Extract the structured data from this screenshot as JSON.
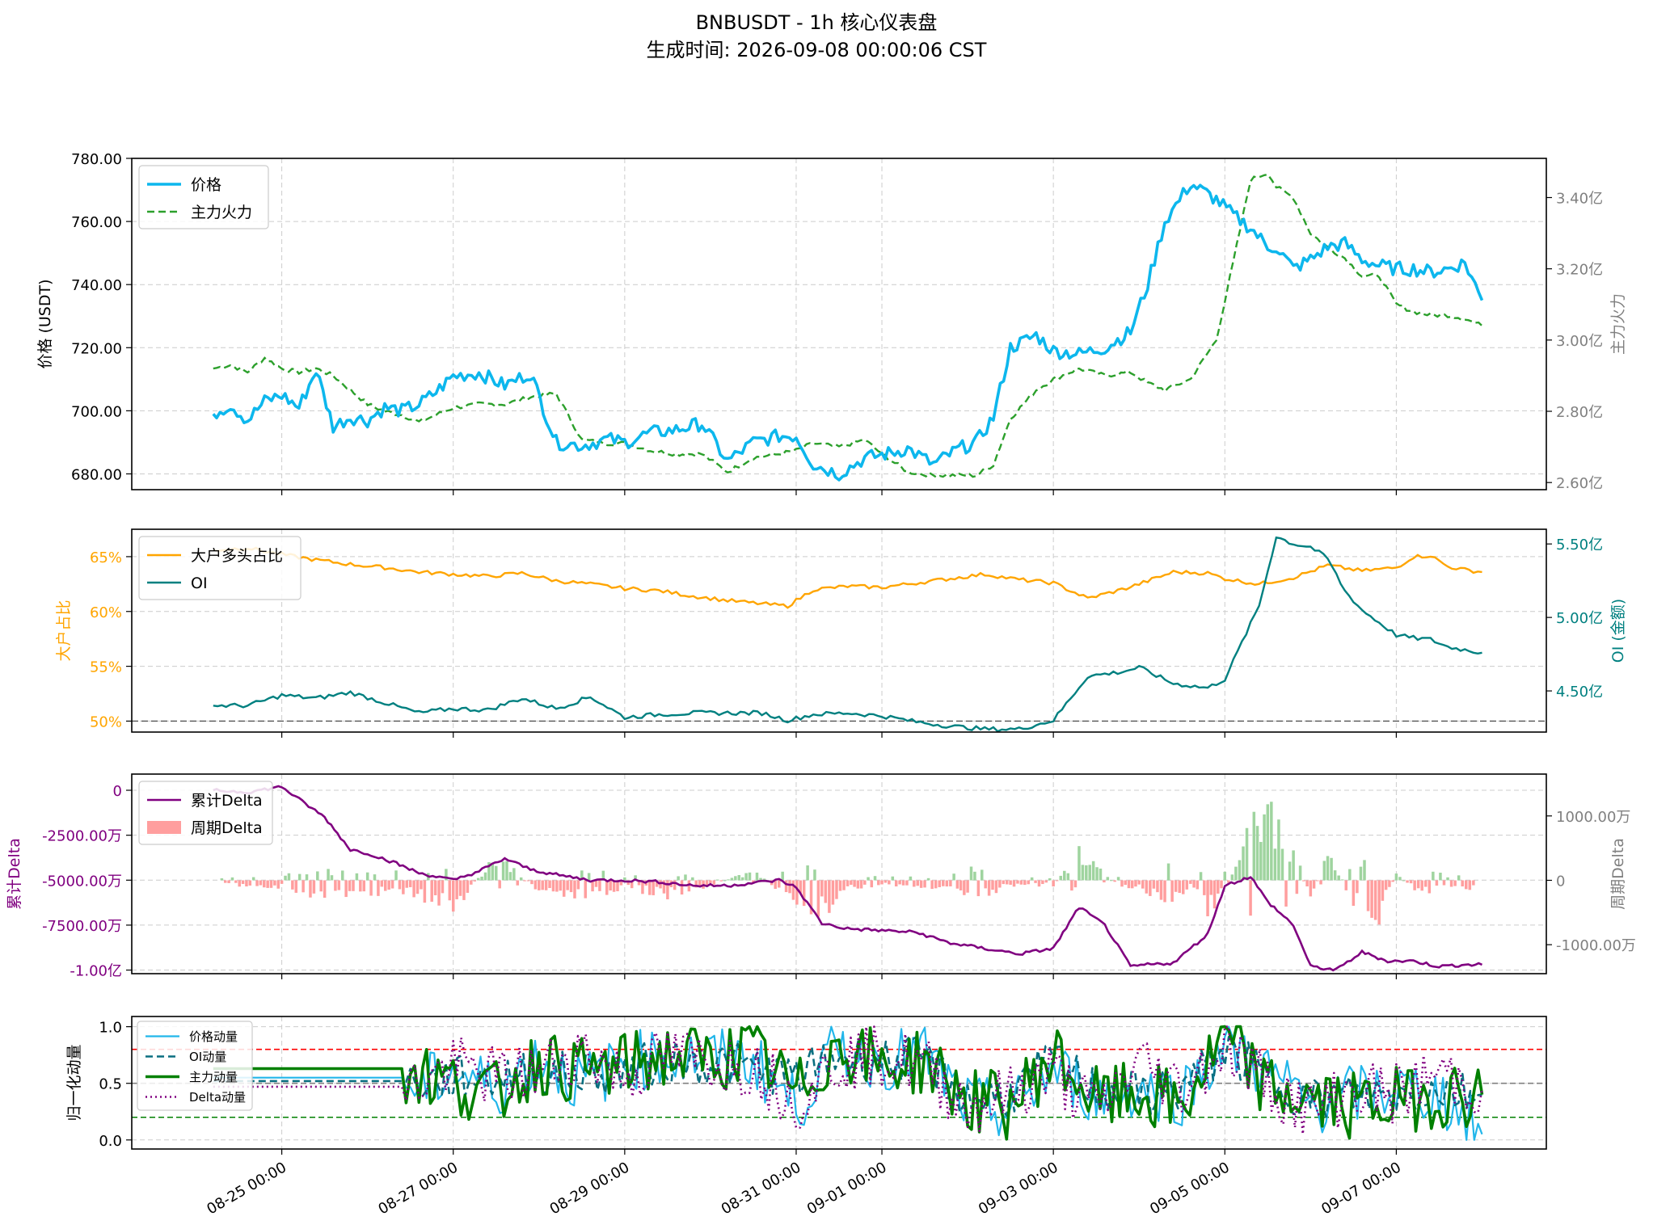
{
  "title_line1": "BNBUSDT - 1h 核心仪表盘",
  "title_line2": "生成时间: 2026-09-08 00:00:06 CST",
  "x_axis": {
    "tick_labels": [
      "08-25 00:00",
      "08-27 00:00",
      "08-29 00:00",
      "08-31 00:00",
      "09-01 00:00",
      "09-03 00:00",
      "09-05 00:00",
      "09-07 00:00"
    ],
    "tick_days": [
      1,
      3,
      5,
      7,
      8,
      10,
      12,
      14
    ],
    "range_days": [
      -0.75,
      15.75
    ],
    "data_start_day": 0.2
  },
  "colors": {
    "price": "#0db7ed",
    "whale": "#2ca02c",
    "ratio": "#ffa500",
    "oi": "#008080",
    "cum_delta": "#800080",
    "pos_delta": "#9fd49f",
    "neg_delta": "#ff9e9e",
    "mom_price": "#22b6ea",
    "mom_oi": "#0a6f80",
    "mom_whale": "#008000",
    "mom_delta": "#800080",
    "grid": "#cccccc",
    "ref_red": "#ff0000",
    "ref_gray": "#808080",
    "ref_green": "#008000"
  },
  "chart_data": [
    {
      "type": "line",
      "panel": "price",
      "ylabel": "价格 (USDT)",
      "ylim": [
        675,
        780
      ],
      "yticks": [
        680,
        700,
        720,
        740,
        760,
        780
      ],
      "yticklabels": [
        "680.00",
        "700.00",
        "720.00",
        "740.00",
        "760.00",
        "780.00"
      ],
      "y2label": "主力火力",
      "y2lim": [
        2.58,
        3.51
      ],
      "y2ticks": [
        2.6,
        2.8,
        3.0,
        3.2,
        3.4
      ],
      "y2ticklabels": [
        "2.60亿",
        "2.80亿",
        "3.00亿",
        "3.20亿",
        "3.40亿"
      ],
      "legend_location": "upper left",
      "series": [
        {
          "name": "价格",
          "axis": "left",
          "style": "solid",
          "x": [
            0.2,
            0.4,
            0.6,
            0.8,
            1.0,
            1.2,
            1.4,
            1.6,
            1.8,
            2.0,
            2.2,
            2.4,
            2.6,
            2.8,
            3.0,
            3.3,
            3.6,
            3.9,
            4.2,
            4.5,
            4.8,
            5.0,
            5.3,
            5.6,
            5.9,
            6.2,
            6.5,
            6.8,
            7.0,
            7.2,
            7.5,
            7.8,
            8.0,
            8.3,
            8.6,
            8.9,
            9.1,
            9.3,
            9.5,
            9.8,
            10.0,
            10.3,
            10.6,
            10.9,
            11.1,
            11.3,
            11.6,
            11.9,
            12.1,
            12.3,
            12.5,
            12.6,
            12.8,
            13.0,
            13.2,
            13.4,
            13.6,
            13.8,
            14.0,
            14.2,
            14.4,
            14.6,
            14.8,
            15.0
          ],
          "values": [
            699,
            702,
            697,
            703,
            705,
            701,
            713,
            695,
            698,
            697,
            701,
            700,
            702,
            706,
            711,
            712,
            708,
            712,
            690,
            689,
            691,
            690,
            693,
            694,
            696,
            684,
            690,
            692,
            692,
            683,
            680,
            685,
            686,
            688,
            683,
            688,
            690,
            698,
            720,
            724,
            719,
            718,
            720,
            725,
            740,
            760,
            772,
            767,
            762,
            758,
            752,
            752,
            745,
            748,
            752,
            753,
            748,
            746,
            745,
            745,
            744,
            745,
            747,
            735
          ]
        },
        {
          "name": "主力火力",
          "axis": "right",
          "style": "dashed",
          "x": [
            0.2,
            0.4,
            0.6,
            0.8,
            1.0,
            1.2,
            1.4,
            1.6,
            1.8,
            2.0,
            2.2,
            2.4,
            2.6,
            2.8,
            3.0,
            3.3,
            3.6,
            3.9,
            4.2,
            4.5,
            4.8,
            5.0,
            5.3,
            5.6,
            5.9,
            6.2,
            6.5,
            6.8,
            7.0,
            7.2,
            7.5,
            7.8,
            8.0,
            8.3,
            8.6,
            8.9,
            9.1,
            9.3,
            9.5,
            9.8,
            10.0,
            10.3,
            10.6,
            10.9,
            11.1,
            11.3,
            11.6,
            11.9,
            12.1,
            12.3,
            12.5,
            12.6,
            12.8,
            13.0,
            13.2,
            13.4,
            13.6,
            13.8,
            14.0,
            14.2,
            14.4,
            14.6,
            14.8,
            15.0
          ],
          "values": [
            2.92,
            2.93,
            2.91,
            2.95,
            2.92,
            2.91,
            2.92,
            2.9,
            2.86,
            2.82,
            2.8,
            2.79,
            2.77,
            2.79,
            2.81,
            2.82,
            2.82,
            2.84,
            2.85,
            2.72,
            2.71,
            2.71,
            2.69,
            2.68,
            2.68,
            2.63,
            2.67,
            2.68,
            2.69,
            2.71,
            2.7,
            2.72,
            2.68,
            2.63,
            2.62,
            2.62,
            2.62,
            2.65,
            2.78,
            2.86,
            2.89,
            2.92,
            2.9,
            2.91,
            2.88,
            2.86,
            2.89,
            3.0,
            3.22,
            3.45,
            3.47,
            3.43,
            3.4,
            3.3,
            3.26,
            3.23,
            3.18,
            3.18,
            3.1,
            3.08,
            3.07,
            3.07,
            3.06,
            3.04
          ]
        }
      ]
    },
    {
      "type": "line",
      "panel": "ratio",
      "ylabel": "大户占比",
      "ylim": [
        49.0,
        67.5
      ],
      "yticks": [
        50,
        55,
        60,
        65
      ],
      "yticklabels": [
        "50%",
        "55%",
        "60%",
        "65%"
      ],
      "y2label": "OI (金额)",
      "y2lim": [
        4.22,
        5.6
      ],
      "y2ticks": [
        4.5,
        5.0,
        5.5
      ],
      "y2ticklabels": [
        "4.50亿",
        "5.00亿",
        "5.50亿"
      ],
      "hline_left": 50,
      "legend_location": "upper left",
      "series": [
        {
          "name": "大户多头占比",
          "axis": "left",
          "x": [
            0.2,
            0.6,
            1.0,
            1.4,
            1.8,
            2.2,
            2.6,
            3.0,
            3.4,
            3.8,
            4.2,
            4.6,
            5.0,
            5.4,
            5.8,
            6.2,
            6.6,
            6.9,
            7.2,
            7.6,
            8.0,
            8.4,
            8.8,
            9.2,
            9.6,
            10.0,
            10.4,
            10.8,
            11.0,
            11.4,
            11.8,
            12.0,
            12.4,
            12.8,
            13.2,
            13.6,
            14.0,
            14.2,
            14.4,
            14.6,
            14.8,
            15.0
          ],
          "values": [
            65.6,
            65.8,
            65.2,
            64.7,
            64.3,
            64.0,
            63.6,
            63.4,
            63.2,
            63.5,
            62.8,
            62.5,
            62.1,
            61.9,
            61.4,
            61.0,
            60.7,
            60.5,
            62.0,
            62.3,
            62.2,
            62.6,
            63.0,
            63.4,
            62.9,
            62.6,
            61.2,
            62.0,
            62.5,
            63.6,
            63.5,
            63.0,
            62.5,
            63.1,
            64.2,
            63.7,
            64.0,
            65.0,
            65.1,
            64.1,
            63.8,
            63.6
          ]
        },
        {
          "name": "OI",
          "axis": "right",
          "x": [
            0.2,
            0.6,
            1.0,
            1.4,
            1.8,
            2.2,
            2.6,
            3.0,
            3.4,
            3.8,
            4.2,
            4.6,
            5.0,
            5.4,
            5.8,
            6.2,
            6.6,
            6.9,
            7.2,
            7.6,
            8.0,
            8.4,
            8.8,
            9.2,
            9.6,
            10.0,
            10.4,
            10.8,
            11.0,
            11.4,
            11.8,
            12.0,
            12.4,
            12.6,
            12.8,
            13.0,
            13.2,
            13.4,
            13.6,
            14.0,
            14.2,
            14.4,
            14.6,
            14.8,
            15.0
          ],
          "values": [
            4.4,
            4.4,
            4.47,
            4.45,
            4.49,
            4.42,
            4.35,
            4.38,
            4.37,
            4.45,
            4.38,
            4.46,
            4.32,
            4.34,
            4.35,
            4.35,
            4.35,
            4.3,
            4.34,
            4.35,
            4.33,
            4.29,
            4.26,
            4.24,
            4.24,
            4.3,
            4.6,
            4.63,
            4.66,
            4.55,
            4.52,
            4.58,
            5.08,
            5.55,
            5.5,
            5.48,
            5.4,
            5.18,
            5.05,
            4.88,
            4.86,
            4.85,
            4.8,
            4.78,
            4.76
          ]
        }
      ]
    },
    {
      "type": "bar+line",
      "panel": "delta",
      "ylabel": "累计Delta",
      "ylim": [
        -10200,
        900
      ],
      "yticks": [
        0,
        -2500,
        -5000,
        -7500,
        -10000
      ],
      "yticklabels": [
        "0",
        "-2500.00万",
        "-5000.00万",
        "-7500.00万",
        "-1.00亿"
      ],
      "y2label": "周期Delta",
      "y2lim": [
        -1450,
        1650
      ],
      "y2ticks": [
        1000,
        0,
        -1000
      ],
      "y2ticklabels": [
        "1000.00万",
        "0",
        "-1000.00万"
      ],
      "legend_location": "upper left",
      "series": [
        {
          "name": "累计Delta",
          "axis": "left",
          "style": "line",
          "x": [
            0.2,
            0.6,
            1.0,
            1.2,
            1.5,
            1.8,
            2.0,
            2.3,
            2.6,
            3.0,
            3.3,
            3.6,
            3.9,
            4.2,
            4.6,
            5.0,
            5.4,
            5.8,
            6.2,
            6.8,
            7.0,
            7.3,
            7.6,
            8.0,
            8.4,
            8.8,
            9.2,
            9.6,
            10.0,
            10.3,
            10.6,
            10.9,
            11.1,
            11.4,
            11.8,
            12.0,
            12.3,
            12.5,
            12.8,
            13.0,
            13.3,
            13.6,
            13.9,
            14.2,
            14.5,
            14.8,
            15.0
          ],
          "values": [
            0,
            -100,
            200,
            -500,
            -1500,
            -3300,
            -3500,
            -4000,
            -4600,
            -5000,
            -4500,
            -3800,
            -4400,
            -4700,
            -5000,
            -5000,
            -5100,
            -5300,
            -5300,
            -5000,
            -5400,
            -7400,
            -7700,
            -7800,
            -7900,
            -8500,
            -8800,
            -9100,
            -8800,
            -6500,
            -7500,
            -9800,
            -9700,
            -9600,
            -8000,
            -5300,
            -4800,
            -6200,
            -7500,
            -9800,
            -10000,
            -9000,
            -9500,
            -9500,
            -9800,
            -9700,
            -9700
          ]
        },
        {
          "name": "周期Delta",
          "axis": "right",
          "style": "bars",
          "x": [
            0.3,
            1.0,
            1.5,
            2.0,
            2.5,
            3.0,
            3.5,
            4.0,
            4.5,
            5.0,
            5.5,
            6.0,
            6.5,
            6.8,
            7.3,
            7.6,
            8.0,
            8.5,
            8.8,
            9.0,
            9.5,
            10.0,
            10.3,
            10.8,
            11.0,
            11.3,
            11.6,
            11.8,
            12.0,
            12.3,
            12.5,
            12.8,
            13.0,
            13.2,
            13.5,
            13.8,
            14.0,
            14.3,
            14.6,
            14.9
          ],
          "values": [
            -80,
            -150,
            -400,
            -250,
            -300,
            -600,
            500,
            -200,
            -350,
            -150,
            -300,
            -100,
            200,
            -200,
            -650,
            -150,
            -100,
            -150,
            -120,
            -400,
            -100,
            -100,
            550,
            -180,
            -120,
            -500,
            -120,
            -600,
            -230,
            1050,
            1450,
            650,
            -350,
            500,
            -450,
            -700,
            120,
            -300,
            -180,
            -150
          ]
        }
      ]
    },
    {
      "type": "line",
      "panel": "momentum",
      "ylabel": "归一化动量",
      "ylim": [
        -0.08,
        1.09
      ],
      "yticks": [
        0.0,
        0.5,
        1.0
      ],
      "yticklabels": [
        "0.0",
        "0.5",
        "1.0"
      ],
      "hlines": [
        0.8,
        0.5,
        0.2
      ],
      "legend_location": "upper left",
      "series": [
        {
          "name": "价格动量",
          "style": "solid",
          "x": [
            0.2,
            2.4,
            2.6,
            3.0,
            3.5,
            4.0,
            4.5,
            5.0,
            5.5,
            6.0,
            6.5,
            7.0,
            7.5,
            8.0,
            8.5,
            9.0,
            9.5,
            10.0,
            10.5,
            11.0,
            11.5,
            12.0,
            12.5,
            13.0,
            13.5,
            14.0,
            14.5,
            15.0
          ],
          "values": [
            0.55,
            0.55,
            0.45,
            0.62,
            0.45,
            0.72,
            0.5,
            0.68,
            0.75,
            0.72,
            0.7,
            0.3,
            0.82,
            0.7,
            0.75,
            0.3,
            0.25,
            0.62,
            0.4,
            0.45,
            0.4,
            0.85,
            0.6,
            0.3,
            0.4,
            0.45,
            0.4,
            0.05
          ]
        },
        {
          "name": "OI动量",
          "style": "dashed",
          "x": [
            0.2,
            2.4,
            2.6,
            3.0,
            3.5,
            4.0,
            4.5,
            5.0,
            5.5,
            6.0,
            6.5,
            7.0,
            7.5,
            8.0,
            8.5,
            9.0,
            9.5,
            10.0,
            10.5,
            11.0,
            11.5,
            12.0,
            12.5,
            13.0,
            13.5,
            14.0,
            14.5,
            15.0
          ],
          "values": [
            0.52,
            0.52,
            0.5,
            0.55,
            0.55,
            0.6,
            0.58,
            0.62,
            0.7,
            0.68,
            0.65,
            0.55,
            0.75,
            0.7,
            0.72,
            0.35,
            0.4,
            0.7,
            0.45,
            0.4,
            0.45,
            0.8,
            0.55,
            0.35,
            0.4,
            0.4,
            0.45,
            0.4
          ]
        },
        {
          "name": "主力动量",
          "style": "solid-thick",
          "x": [
            0.2,
            2.4,
            2.6,
            3.0,
            3.5,
            4.0,
            4.5,
            5.0,
            5.5,
            6.0,
            6.5,
            7.0,
            7.5,
            8.0,
            8.5,
            9.0,
            9.5,
            10.0,
            10.5,
            11.0,
            11.5,
            12.0,
            12.5,
            13.0,
            13.5,
            14.0,
            14.5,
            15.0
          ],
          "values": [
            0.63,
            0.63,
            0.6,
            0.5,
            0.4,
            0.7,
            0.6,
            0.65,
            0.75,
            0.7,
            0.8,
            0.4,
            0.85,
            0.65,
            0.7,
            0.35,
            0.3,
            0.75,
            0.35,
            0.4,
            0.3,
            0.9,
            0.45,
            0.35,
            0.3,
            0.35,
            0.4,
            0.4
          ]
        },
        {
          "name": "Delta动量",
          "style": "dotted",
          "x": [
            0.2,
            2.4,
            2.6,
            3.0,
            3.5,
            4.0,
            4.5,
            5.0,
            5.5,
            6.0,
            6.5,
            7.0,
            7.5,
            8.0,
            8.5,
            9.0,
            9.5,
            10.0,
            10.5,
            11.0,
            11.5,
            12.0,
            12.5,
            13.0,
            13.5,
            14.0,
            14.5,
            15.0
          ],
          "values": [
            0.47,
            0.47,
            0.5,
            0.65,
            0.55,
            0.6,
            0.8,
            0.55,
            0.75,
            0.7,
            0.65,
            0.35,
            0.7,
            0.75,
            0.65,
            0.3,
            0.4,
            0.6,
            0.25,
            0.7,
            0.45,
            0.85,
            0.5,
            0.25,
            0.45,
            0.4,
            0.6,
            0.45
          ]
        }
      ]
    }
  ]
}
